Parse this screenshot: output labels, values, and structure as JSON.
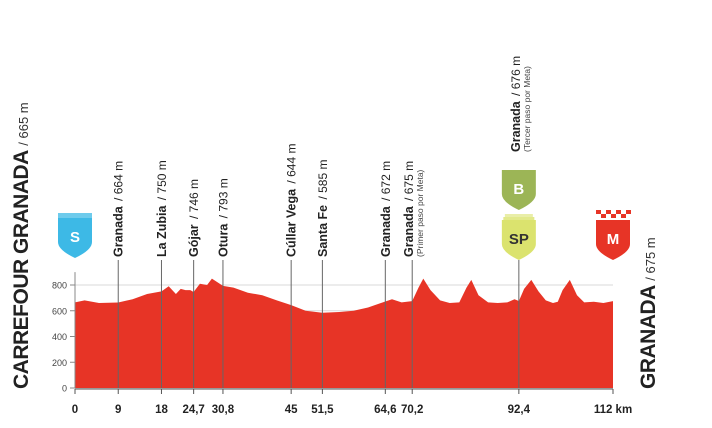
{
  "start": {
    "name": "CARREFOUR GRANADA",
    "altitude": "/ 665 m",
    "badge": "S",
    "color": "#3db9e6"
  },
  "finish": {
    "name": "GRANADA",
    "altitude": "/ 675 m",
    "badge": "M",
    "color": "#e73426"
  },
  "sprint_badge": {
    "label": "SP",
    "color": "#dbe36e"
  },
  "bonus_badge": {
    "label": "B",
    "color": "#9cb556"
  },
  "profile_color": "#e73426",
  "chart_data": {
    "type": "area",
    "xlabel": "",
    "ylabel": "",
    "xlim": [
      0,
      112
    ],
    "ylim": [
      0,
      900
    ],
    "y_ticks": [
      0,
      200,
      400,
      600,
      800
    ],
    "x_ticks": [
      "0",
      "9",
      "18",
      "24,7",
      "30,8",
      "45",
      "51,5",
      "64,6",
      "70,2",
      "92,4",
      "112 km"
    ],
    "x_tick_values": [
      0,
      9,
      18,
      24.7,
      30.8,
      45,
      51.5,
      64.6,
      70.2,
      92.4,
      112
    ],
    "waypoints": [
      {
        "km": 9,
        "name": "Granada",
        "altitude": "/ 664 m"
      },
      {
        "km": 18,
        "name": "La Zubia",
        "altitude": "/ 750 m"
      },
      {
        "km": 24.7,
        "name": "Gójar",
        "altitude": "/ 746 m"
      },
      {
        "km": 30.8,
        "name": "Otura",
        "altitude": "/ 793 m"
      },
      {
        "km": 45,
        "name": "Cúllar Vega",
        "altitude": "/ 644 m"
      },
      {
        "km": 51.5,
        "name": "Santa Fe",
        "altitude": "/ 585 m"
      },
      {
        "km": 64.6,
        "name": "Granada",
        "altitude": "/ 672 m"
      },
      {
        "km": 70.2,
        "name": "Granada",
        "altitude": "/ 675 m",
        "note": "(Primer paso por Meta)"
      },
      {
        "km": 92.4,
        "name": "Granada",
        "altitude": "/ 676 m",
        "note": "(Tercer paso por Meta)"
      }
    ],
    "profile": {
      "x": [
        0,
        2,
        5,
        9,
        12,
        15,
        18,
        19.5,
        21,
        22,
        23,
        24,
        24.7,
        26,
        27.5,
        28.5,
        30.8,
        33,
        36,
        39,
        42,
        45,
        48,
        51.5,
        55,
        58,
        61,
        64.6,
        66,
        68,
        70.2,
        71.5,
        72.5,
        74,
        76,
        78,
        80,
        81.5,
        82.5,
        84,
        86,
        88,
        90,
        91.5,
        92.4,
        93.5,
        95,
        96.5,
        98,
        99.5,
        100.5,
        101.5,
        103,
        104.5,
        106,
        108,
        110,
        112
      ],
      "y": [
        665,
        680,
        660,
        664,
        690,
        730,
        750,
        790,
        730,
        770,
        760,
        760,
        746,
        810,
        800,
        850,
        793,
        780,
        740,
        720,
        680,
        644,
        600,
        585,
        590,
        600,
        625,
        672,
        690,
        665,
        675,
        780,
        850,
        760,
        680,
        660,
        665,
        780,
        840,
        720,
        665,
        660,
        665,
        690,
        676,
        770,
        840,
        750,
        680,
        660,
        670,
        760,
        840,
        720,
        665,
        670,
        660,
        675
      ]
    }
  }
}
